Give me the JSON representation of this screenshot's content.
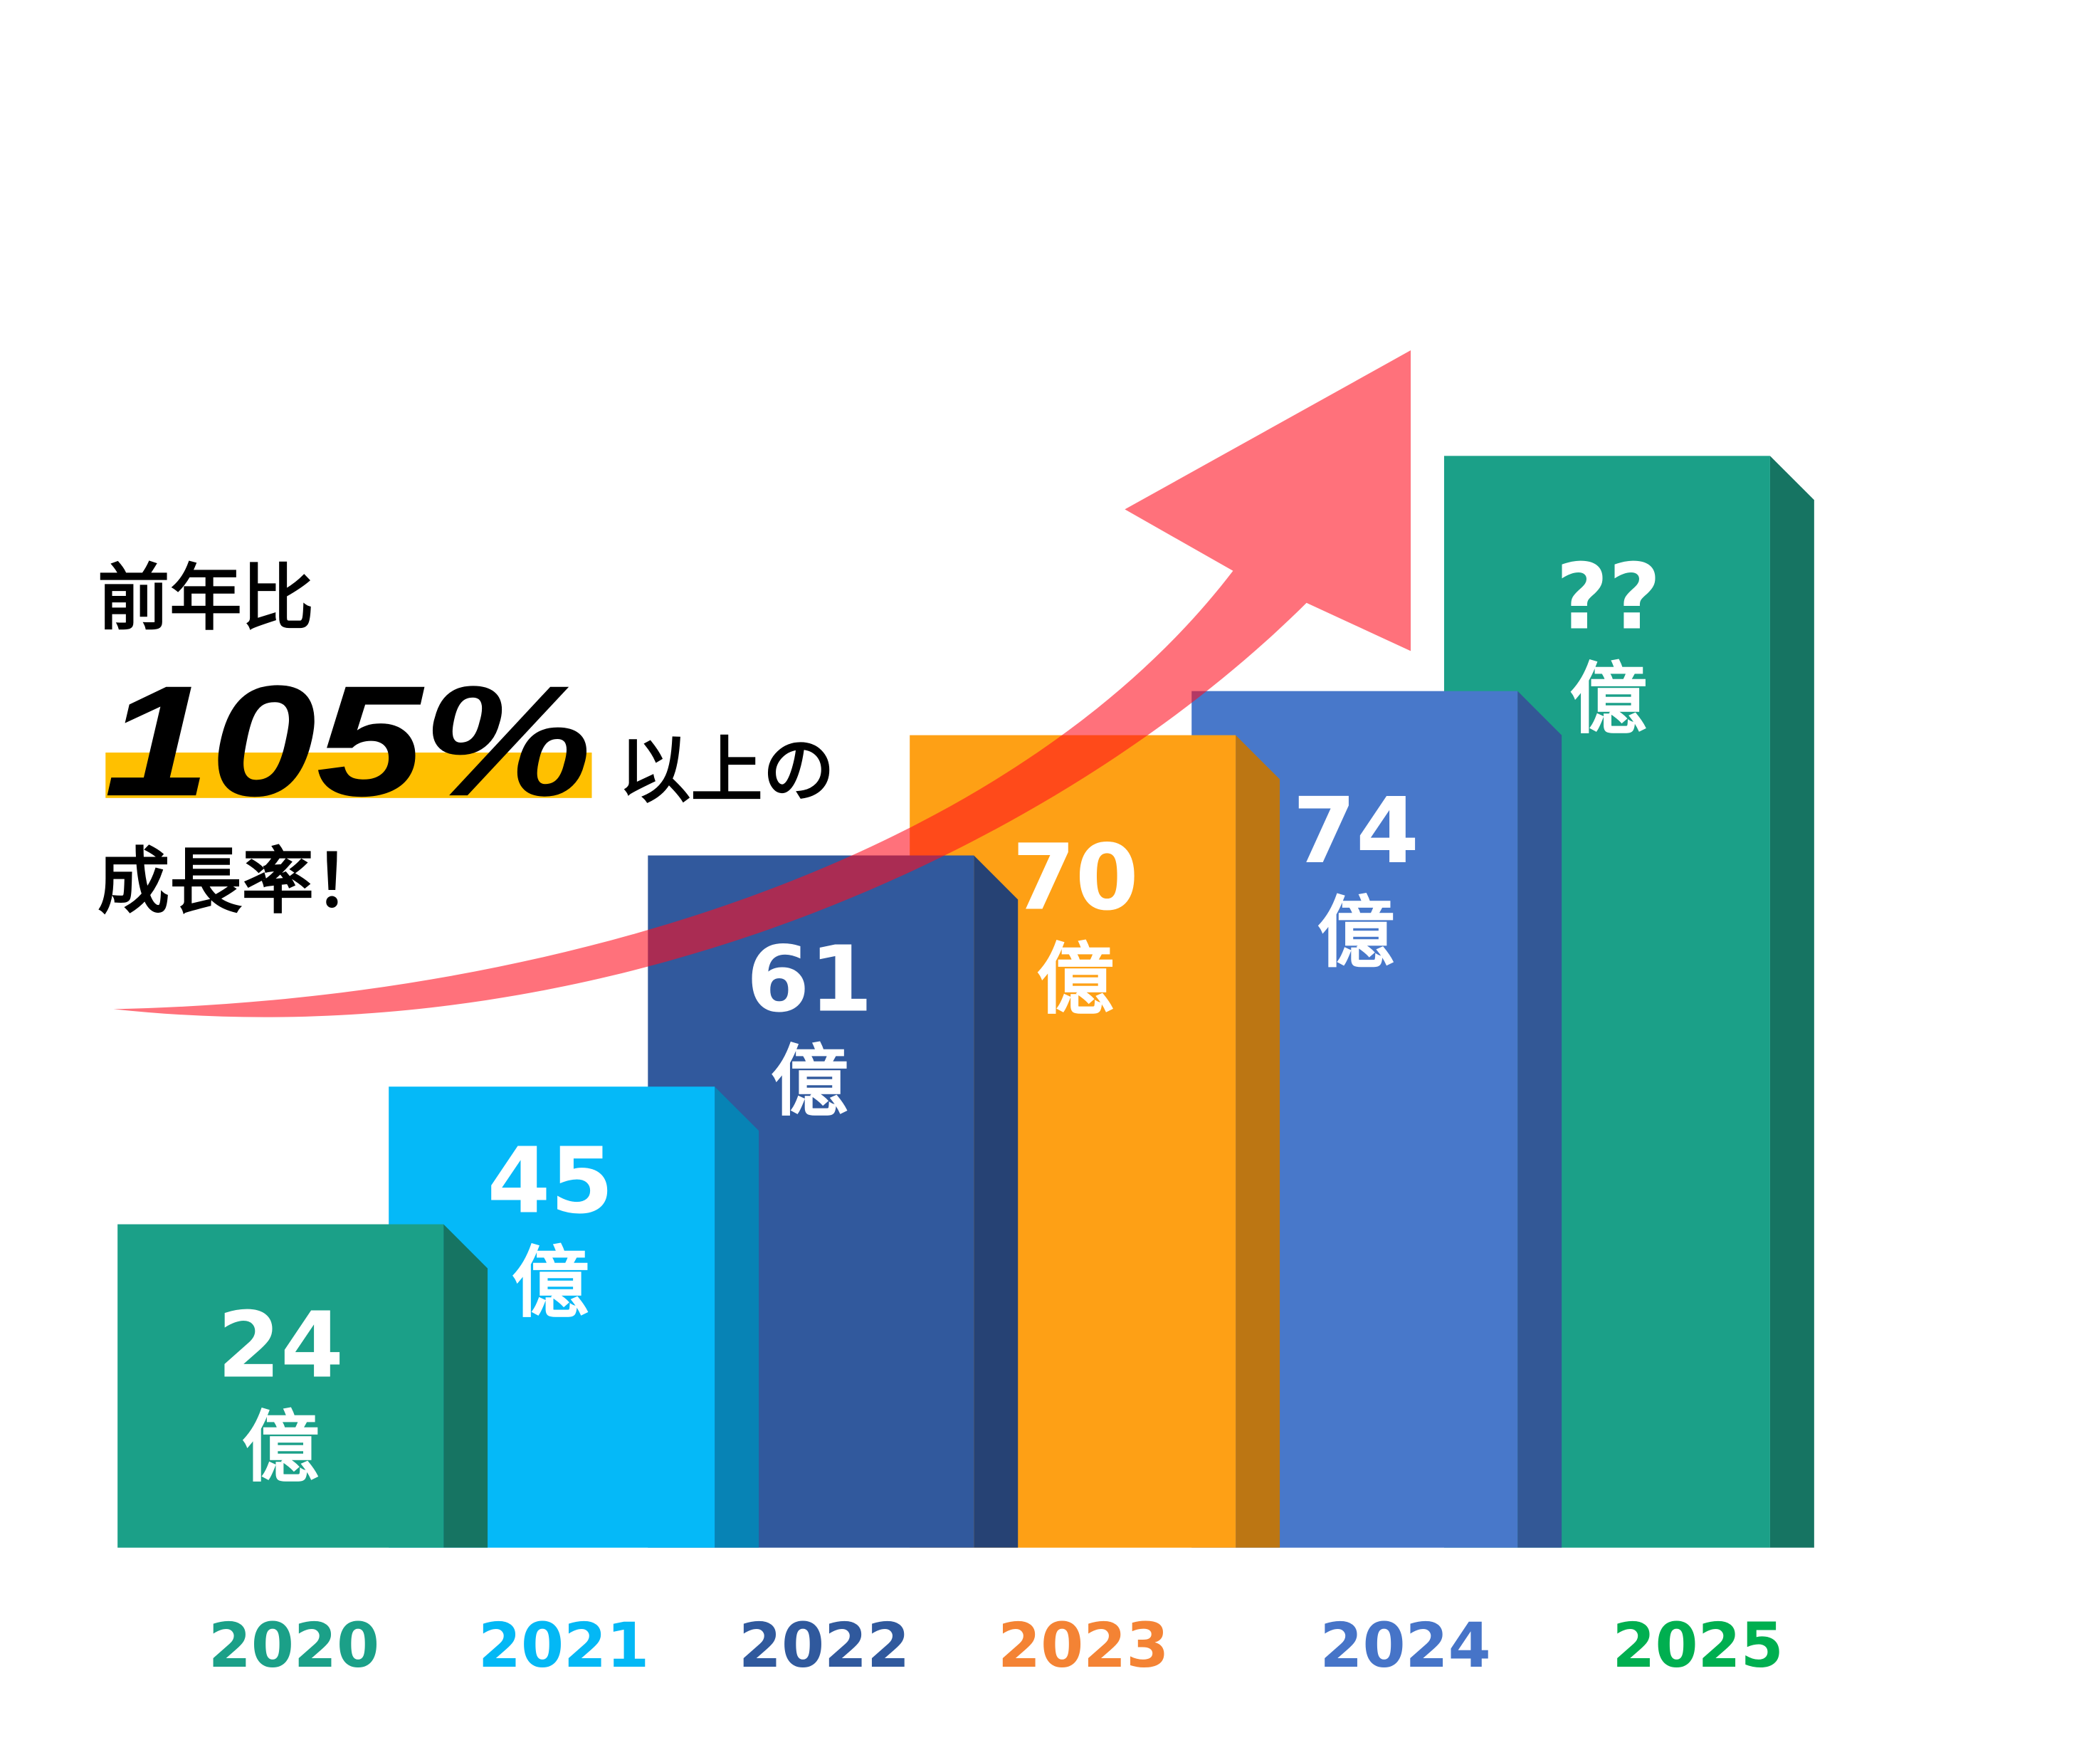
{
  "headline": {
    "line1": "前年比",
    "percent": "105%",
    "suffix": "以上の",
    "line3": "成長率！",
    "highlight_color": "#FFC000"
  },
  "chart_data": {
    "type": "bar",
    "categories": [
      "2020",
      "2021",
      "2022",
      "2023",
      "2024",
      "2025"
    ],
    "values": [
      24,
      45,
      61,
      70,
      74,
      null
    ],
    "value_labels": [
      "24",
      "45",
      "61",
      "70",
      "74",
      "??"
    ],
    "unit_label": "億",
    "bar_colors": [
      "#1BA088",
      "#05B9F8",
      "#31599D",
      "#FEA015",
      "#4878CA",
      "#1BA088"
    ],
    "side_colors": [
      "#167462",
      "#0783B5",
      "#264274",
      "#BC7613",
      "#335896",
      "#167462"
    ],
    "year_label_colors": [
      "#1BA088",
      "#03B8F5",
      "#30599D",
      "#F48334",
      "#4674C8",
      "#00AF50"
    ],
    "style": "3d-bars",
    "grid": false,
    "trend_arrow": {
      "color": "#FF0E1E",
      "direction": "up-right"
    }
  }
}
